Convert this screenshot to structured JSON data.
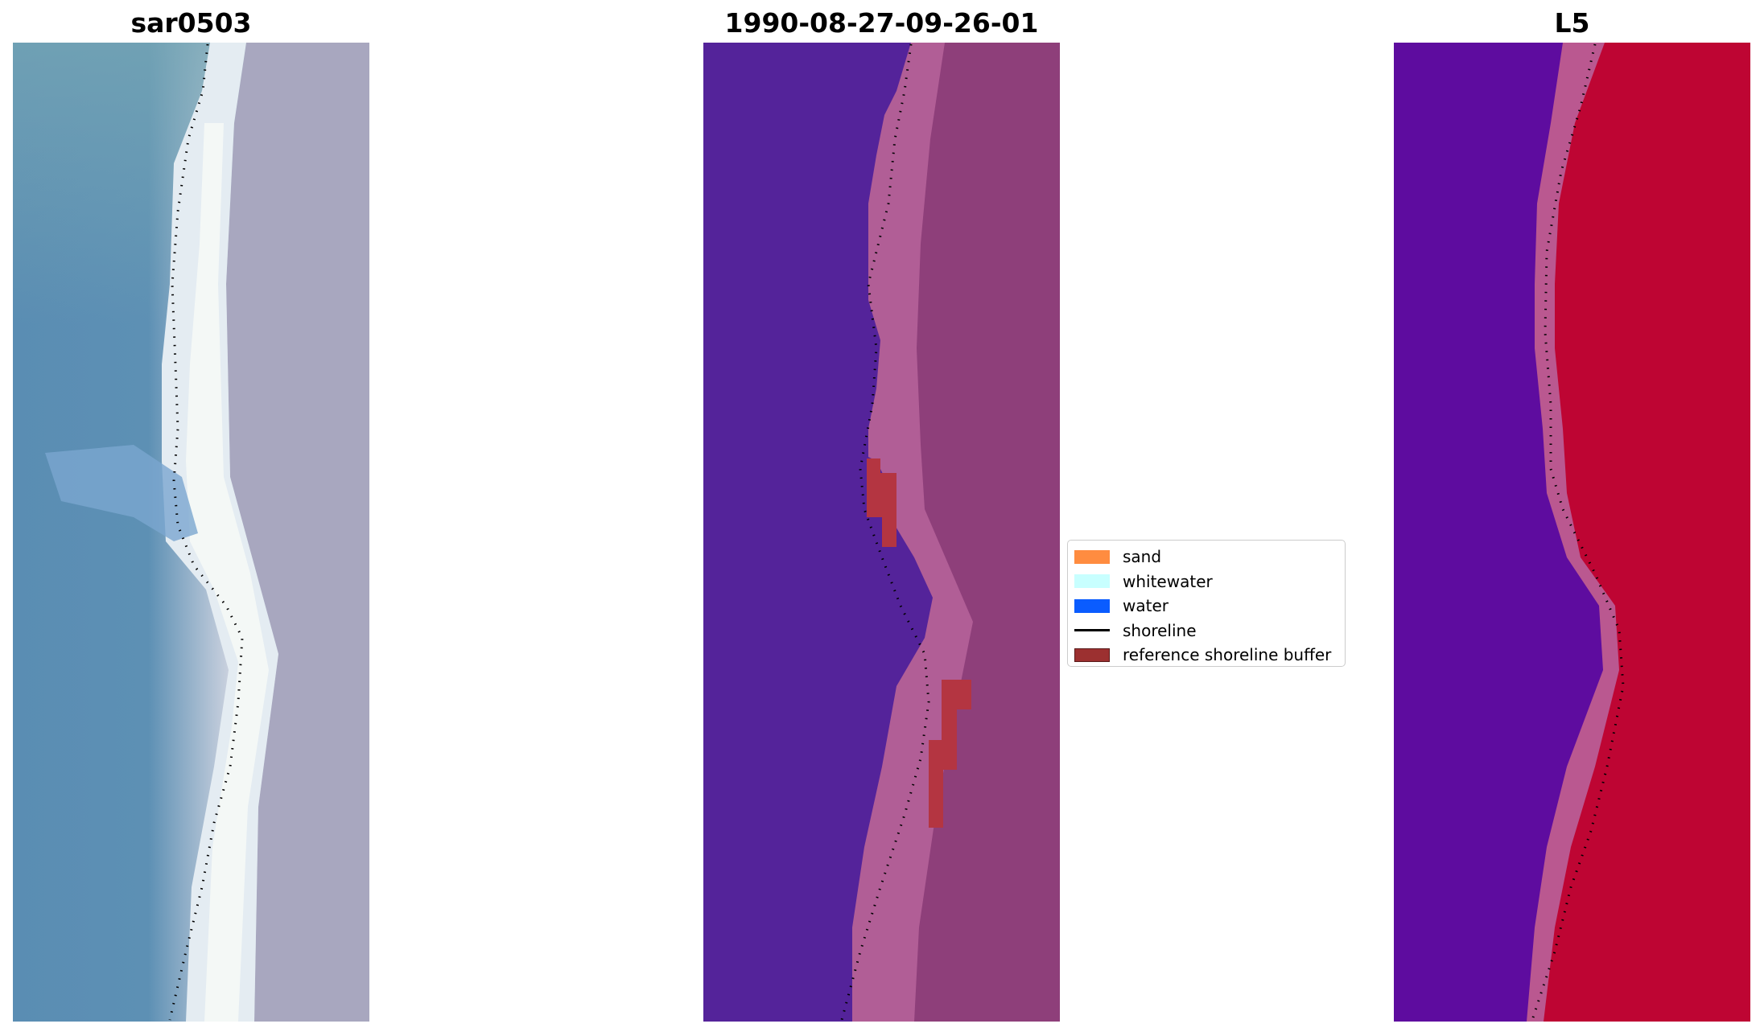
{
  "panels": [
    {
      "title": "sar0503",
      "image": "rgb-satellite-image"
    },
    {
      "title": "1990-08-27-09-26-01",
      "image": "classified-image"
    },
    {
      "title": "L5",
      "image": "mndwi-image"
    }
  ],
  "legend": {
    "items": [
      {
        "label": "sand",
        "color": "#ff8c40"
      },
      {
        "label": "whitewater",
        "color": "#c8ffff"
      },
      {
        "label": "water",
        "color": "#0a5cff"
      },
      {
        "label": "shoreline",
        "color": "#000000",
        "icon": "line"
      },
      {
        "label": "reference shoreline buffer",
        "color": "#9c3030",
        "border": "#5a1a1a"
      }
    ]
  },
  "colors": {
    "rgb_water": "#5288b0",
    "rgb_whitewater": "#f2f8f8",
    "rgb_land": "#a7a7be",
    "class_water": "#54239a",
    "class_sand": "#b15e96",
    "class_inland": "#8e3f7a",
    "class_buffer": "#b43541",
    "mndwi_water": "#5b0b9e",
    "mndwi_transition": "#ba5890",
    "mndwi_land": "#be0533"
  }
}
